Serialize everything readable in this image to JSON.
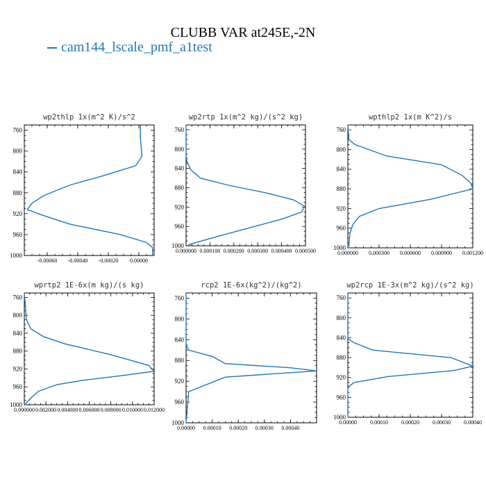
{
  "title": "CLUBB VAR at245E,-2N",
  "legend": {
    "label": "cam144_lscale_pmf_a1test",
    "color": "#1f77b4"
  },
  "chart_data": [
    {
      "type": "line",
      "title": "wp2thlp   1x(m^2 K)/s^2",
      "xlim": [
        -0.00075,
        0.0001
      ],
      "ylim": [
        1000,
        750
      ],
      "yticks": [
        760,
        800,
        840,
        880,
        920,
        960,
        1000
      ],
      "xticks": [
        -0.0006,
        -0.0004,
        -0.0002,
        0.0
      ],
      "xtick_labels": [
        "-0.00060",
        "-0.00040",
        "-0.00020",
        "0.00000"
      ],
      "series": [
        {
          "x": [
            1e-05,
            1e-05,
            2e-05,
            -2e-05,
            -0.00023,
            -0.00045,
            -0.00062,
            -0.0007,
            -0.00073,
            -0.00064,
            -0.00045,
            -0.00012,
            5e-05,
            9e-05,
            9e-05
          ],
          "y": [
            750,
            775,
            810,
            828,
            847,
            865,
            885,
            900,
            912,
            922,
            940,
            960,
            975,
            985,
            1000
          ]
        }
      ]
    },
    {
      "type": "line",
      "title": "wp2rtp  1x(m^2 kg)/(s^2 kg)",
      "xlim": [
        0.0,
        0.0005
      ],
      "ylim": [
        1000,
        750
      ],
      "yticks": [
        760,
        800,
        840,
        880,
        920,
        960,
        1000
      ],
      "xticks": [
        0.0,
        0.0001,
        0.0002,
        0.0003,
        0.0004,
        0.0005
      ],
      "xtick_labels": [
        "0.000000",
        "0.000100",
        "0.000200",
        "0.000300",
        "0.000400",
        "0.000500"
      ],
      "series": [
        {
          "x": [
            0.0,
            0.0,
            3e-06,
            2e-05,
            6e-05,
            0.00018,
            0.00033,
            0.00045,
            0.000495,
            0.000485,
            0.0004,
            0.00025,
            0.0001,
            1e-05
          ],
          "y": [
            750,
            810,
            825,
            843,
            860,
            875,
            890,
            905,
            918,
            930,
            945,
            965,
            985,
            998
          ]
        }
      ]
    },
    {
      "type": "line",
      "title": "wpthlp2  1x(m K^2)/s",
      "xlim": [
        0.0,
        0.0012
      ],
      "ylim": [
        1000,
        750
      ],
      "yticks": [
        760,
        800,
        840,
        880,
        920,
        960,
        1000
      ],
      "xticks": [
        0.0,
        0.0003,
        0.0006,
        0.0009,
        0.0012
      ],
      "xtick_labels": [
        "0.000000",
        "0.000300",
        "0.000600",
        "0.000900",
        "0.001200"
      ],
      "series": [
        {
          "x": [
            0.0,
            1e-05,
            7e-05,
            0.00037,
            0.0009,
            0.0011,
            0.00118,
            0.0012,
            0.0008,
            0.0003,
            0.00011,
            5e-05,
            2e-05,
            1e-05
          ],
          "y": [
            750,
            780,
            790,
            813,
            831,
            853,
            868,
            880,
            901,
            920,
            936,
            952,
            970,
            997
          ]
        }
      ]
    },
    {
      "type": "line",
      "title": "wprtp2  1E-6x(m kg)/(s kg)",
      "xlim": [
        0.0,
        0.012
      ],
      "ylim": [
        1000,
        750
      ],
      "yticks": [
        760,
        800,
        840,
        880,
        920,
        960,
        1000
      ],
      "xticks": [
        0.0,
        0.002,
        0.004,
        0.006,
        0.008,
        0.01,
        0.012
      ],
      "xtick_labels": [
        "0.000000",
        "0.002000",
        "0.004000",
        "0.006000",
        "0.008000",
        "0.010000",
        "0.012000"
      ],
      "series": [
        {
          "x": [
            0.0,
            0.0002,
            0.0006,
            0.0018,
            0.0038,
            0.008,
            0.0115,
            0.012,
            0.009,
            0.0055,
            0.003,
            0.0013,
            0.0006,
            0.0001
          ],
          "y": [
            750,
            810,
            830,
            848,
            864,
            888,
            912,
            925,
            935,
            945,
            955,
            970,
            985,
            998
          ]
        }
      ]
    },
    {
      "type": "line",
      "title": "rcp2  1E-6x(kg^2)/(kg^2)",
      "xlim": [
        0.0,
        0.0005
      ],
      "ylim": [
        1000,
        750
      ],
      "yticks": [
        760,
        800,
        840,
        880,
        920,
        960,
        1000
      ],
      "xticks": [
        0.0,
        0.0001,
        0.0002,
        0.0003,
        0.0004
      ],
      "xtick_labels": [
        "0.00000",
        "0.00010",
        "0.00020",
        "0.00030",
        "0.00040"
      ],
      "series": [
        {
          "x": [
            0.0,
            0.0,
            1e-05,
            0.0001,
            0.00015,
            0.0004,
            0.0005,
            0.00015,
            1e-05,
            0.0
          ],
          "y": [
            750,
            850,
            860,
            872,
            886,
            894,
            900,
            912,
            940,
            1000
          ]
        }
      ]
    },
    {
      "type": "line",
      "title": "wp2rcp  1E-3x(m^2 kg)/(s^2 kg)",
      "xlim": [
        0.0,
        0.0004
      ],
      "ylim": [
        1000,
        750
      ],
      "yticks": [
        760,
        800,
        840,
        880,
        920,
        960,
        1000
      ],
      "xticks": [
        0.0,
        0.0001,
        0.0002,
        0.0003,
        0.0004
      ],
      "xtick_labels": [
        "0.00000",
        "0.00010",
        "0.00020",
        "0.00030",
        "0.00040"
      ],
      "series": [
        {
          "x": [
            0.0,
            0.0,
            2e-05,
            8e-05,
            0.00033,
            0.0004,
            0.00034,
            0.00013,
            2e-05,
            0.0,
            0.0
          ],
          "y": [
            750,
            842,
            850,
            865,
            880,
            897,
            906,
            918,
            930,
            940,
            1000
          ]
        }
      ]
    }
  ]
}
